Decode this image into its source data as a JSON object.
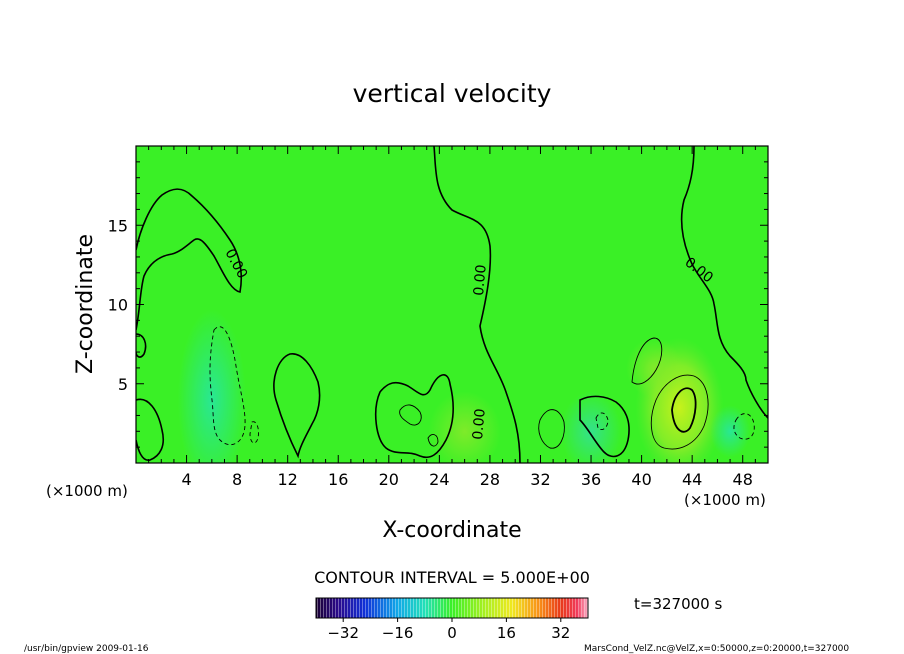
{
  "chart_data": {
    "type": "heatmap",
    "title": "vertical velocity",
    "xlabel": "X-coordinate",
    "ylabel": "Z-coordinate",
    "x_unit_left": "(×1000 m)",
    "x_unit_right": "(×1000 m)",
    "xlim": [
      0,
      50
    ],
    "ylim": [
      0,
      20
    ],
    "xticks": [
      4,
      8,
      12,
      16,
      20,
      24,
      28,
      32,
      36,
      40,
      44,
      48
    ],
    "yticks": [
      5,
      10,
      15
    ],
    "contour_interval_text": "CONTOUR INTERVAL = 5.000E+00",
    "contour_labels": [
      "0.00",
      "0.00",
      "0.00",
      "0.00"
    ],
    "colorbar": {
      "range": [
        -40,
        40
      ],
      "ticks": [
        -32,
        -16,
        0,
        16,
        32
      ]
    },
    "time_label": "t=327000 s",
    "background_color": "#3af026",
    "features": [
      {
        "x": 6,
        "z": 4,
        "value": -6,
        "color": "#27e6a0"
      },
      {
        "x": 43,
        "z": 3.5,
        "value": 8,
        "color": "#b2f21e"
      },
      {
        "x": 36,
        "z": 2,
        "value": -3,
        "color": "#30e48a"
      },
      {
        "x": 26,
        "z": 2,
        "value": 4,
        "color": "#8ee826"
      },
      {
        "x": 41,
        "z": 6,
        "value": 4,
        "color": "#7ae832"
      },
      {
        "x": 47,
        "z": 2,
        "value": -3,
        "color": "#2fe2a8"
      }
    ]
  },
  "footer": {
    "left": "/usr/bin/gpview   2009-01-16",
    "right": "MarsCond_VelZ.nc@VelZ,x=0:50000,z=0:20000,t=327000"
  }
}
